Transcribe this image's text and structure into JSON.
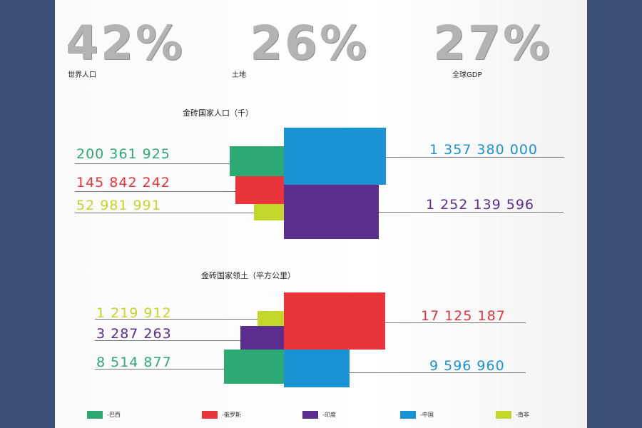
{
  "stats": [
    {
      "value": "42%",
      "label": "世界人口"
    },
    {
      "value": "26%",
      "label": "土地"
    },
    {
      "value": "27%",
      "label": "全球GDP"
    }
  ],
  "colors": {
    "巴西": "#2daa73",
    "俄罗斯": "#e8343a",
    "印度": "#5b2d8e",
    "中国": "#1a92d6",
    "南非": "#c3d62a"
  },
  "legend": [
    {
      "label": "-巴西",
      "color": "#2daa73"
    },
    {
      "label": "-俄罗斯",
      "color": "#e8343a"
    },
    {
      "label": "-印度",
      "color": "#5b2d8e"
    },
    {
      "label": "-中国",
      "color": "#1a92d6"
    },
    {
      "label": "-南非",
      "color": "#c3d62a"
    }
  ],
  "chart_data": [
    {
      "type": "bar",
      "title": "金砖国家人口（千）",
      "categories": [
        "巴西",
        "俄罗斯",
        "南非",
        "中国",
        "印度"
      ],
      "values": [
        200361925,
        145842242,
        52981991,
        1357380000,
        1252139596
      ],
      "labels": [
        "200 361 925",
        "145 842 242",
        "52 981 991",
        "1 357 380 000",
        "1 252 139 596"
      ]
    },
    {
      "type": "bar",
      "title": "金砖国家领土（平方公里）",
      "categories": [
        "南非",
        "印度",
        "巴西",
        "俄罗斯",
        "中国"
      ],
      "values": [
        1219912,
        3287263,
        8514877,
        17125187,
        9596960
      ],
      "labels": [
        "1 219 912",
        "3 287 263",
        "8 514 877",
        "17 125 187",
        "9 596 960"
      ]
    }
  ]
}
